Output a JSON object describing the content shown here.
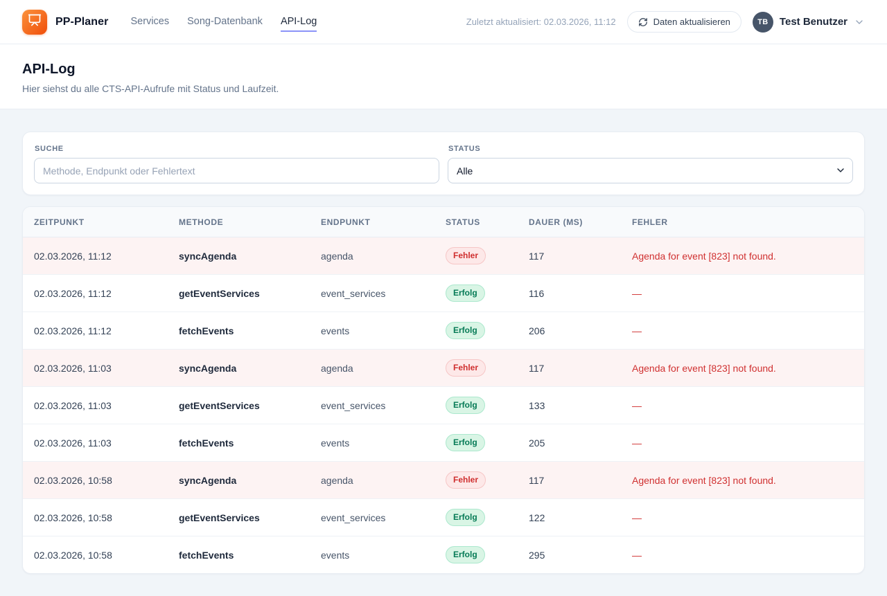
{
  "brand": {
    "name": "PP-Planer",
    "logo_icon": "presentation-icon"
  },
  "nav": {
    "items": [
      {
        "label": "Services",
        "active": false
      },
      {
        "label": "Song-Datenbank",
        "active": false
      },
      {
        "label": "API-Log",
        "active": true
      }
    ]
  },
  "header": {
    "last_updated": "Zuletzt aktualisiert: 02.03.2026, 11:12",
    "refresh_button_label": "Daten aktualisieren",
    "user": {
      "initials": "TB",
      "name": "Test Benutzer"
    }
  },
  "page": {
    "title": "API-Log",
    "subtitle": "Hier siehst du alle CTS-API-Aufrufe mit Status und Laufzeit."
  },
  "filters": {
    "search": {
      "label": "Suche",
      "placeholder": "Methode, Endpunkt oder Fehlertext",
      "value": ""
    },
    "status": {
      "label": "Status",
      "selected": "Alle"
    }
  },
  "table": {
    "columns": [
      "Zeitpunkt",
      "Methode",
      "Endpunkt",
      "Status",
      "Dauer (ms)",
      "Fehler"
    ],
    "status_labels": {
      "error": "Fehler",
      "success": "Erfolg"
    },
    "empty_error_placeholder": "—",
    "rows": [
      {
        "zeitpunkt": "02.03.2026, 11:12",
        "methode": "syncAgenda",
        "endpunkt": "agenda",
        "status": "Fehler",
        "dauer_ms": "117",
        "fehler": "Agenda for event [823] not found."
      },
      {
        "zeitpunkt": "02.03.2026, 11:12",
        "methode": "getEventServices",
        "endpunkt": "event_services",
        "status": "Erfolg",
        "dauer_ms": "116",
        "fehler": "—"
      },
      {
        "zeitpunkt": "02.03.2026, 11:12",
        "methode": "fetchEvents",
        "endpunkt": "events",
        "status": "Erfolg",
        "dauer_ms": "206",
        "fehler": "—"
      },
      {
        "zeitpunkt": "02.03.2026, 11:03",
        "methode": "syncAgenda",
        "endpunkt": "agenda",
        "status": "Fehler",
        "dauer_ms": "117",
        "fehler": "Agenda for event [823] not found."
      },
      {
        "zeitpunkt": "02.03.2026, 11:03",
        "methode": "getEventServices",
        "endpunkt": "event_services",
        "status": "Erfolg",
        "dauer_ms": "133",
        "fehler": "—"
      },
      {
        "zeitpunkt": "02.03.2026, 11:03",
        "methode": "fetchEvents",
        "endpunkt": "events",
        "status": "Erfolg",
        "dauer_ms": "205",
        "fehler": "—"
      },
      {
        "zeitpunkt": "02.03.2026, 10:58",
        "methode": "syncAgenda",
        "endpunkt": "agenda",
        "status": "Fehler",
        "dauer_ms": "117",
        "fehler": "Agenda for event [823] not found."
      },
      {
        "zeitpunkt": "02.03.2026, 10:58",
        "methode": "getEventServices",
        "endpunkt": "event_services",
        "status": "Erfolg",
        "dauer_ms": "122",
        "fehler": "—"
      },
      {
        "zeitpunkt": "02.03.2026, 10:58",
        "methode": "fetchEvents",
        "endpunkt": "events",
        "status": "Erfolg",
        "dauer_ms": "295",
        "fehler": "—"
      }
    ]
  },
  "colors": {
    "brand_orange": "#f97316",
    "active_tab_underline": "#8b93f8",
    "error_text": "#cf2e2e",
    "error_badge_bg": "#fde8e8",
    "error_row_bg": "#fdf3f3",
    "success_text": "#057a55",
    "success_badge_bg": "#d9f5e5",
    "page_bg": "#f1f5f9"
  }
}
